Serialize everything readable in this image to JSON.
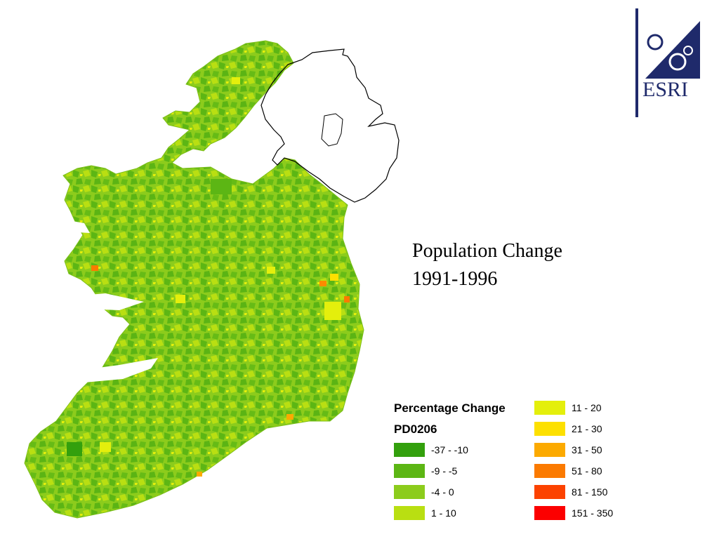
{
  "title": {
    "line1": "Population Change",
    "line2": "1991-1996"
  },
  "legend": {
    "heading": "Percentage Change",
    "field": "PD0206",
    "classes": [
      {
        "label": "-37 - -10",
        "color": "#33a00d"
      },
      {
        "label": "-9 - -5",
        "color": "#5cb614"
      },
      {
        "label": "-4 - 0",
        "color": "#8ccc1c"
      },
      {
        "label": "1 - 10",
        "color": "#b9df12"
      },
      {
        "label": "11 - 20",
        "color": "#e4ef0c"
      },
      {
        "label": "21 - 30",
        "color": "#fde000"
      },
      {
        "label": "31 - 50",
        "color": "#fcaa00"
      },
      {
        "label": "51 - 80",
        "color": "#fb7a00"
      },
      {
        "label": "81 - 150",
        "color": "#fc4200"
      },
      {
        "label": "151 - 350",
        "color": "#fc0000"
      }
    ]
  },
  "logo": {
    "text": "ESRI",
    "color": "#1f2a6b"
  },
  "map": {
    "region": "Ireland",
    "base_color": "#8ccc1c",
    "northern_outline_color": "#000000"
  }
}
